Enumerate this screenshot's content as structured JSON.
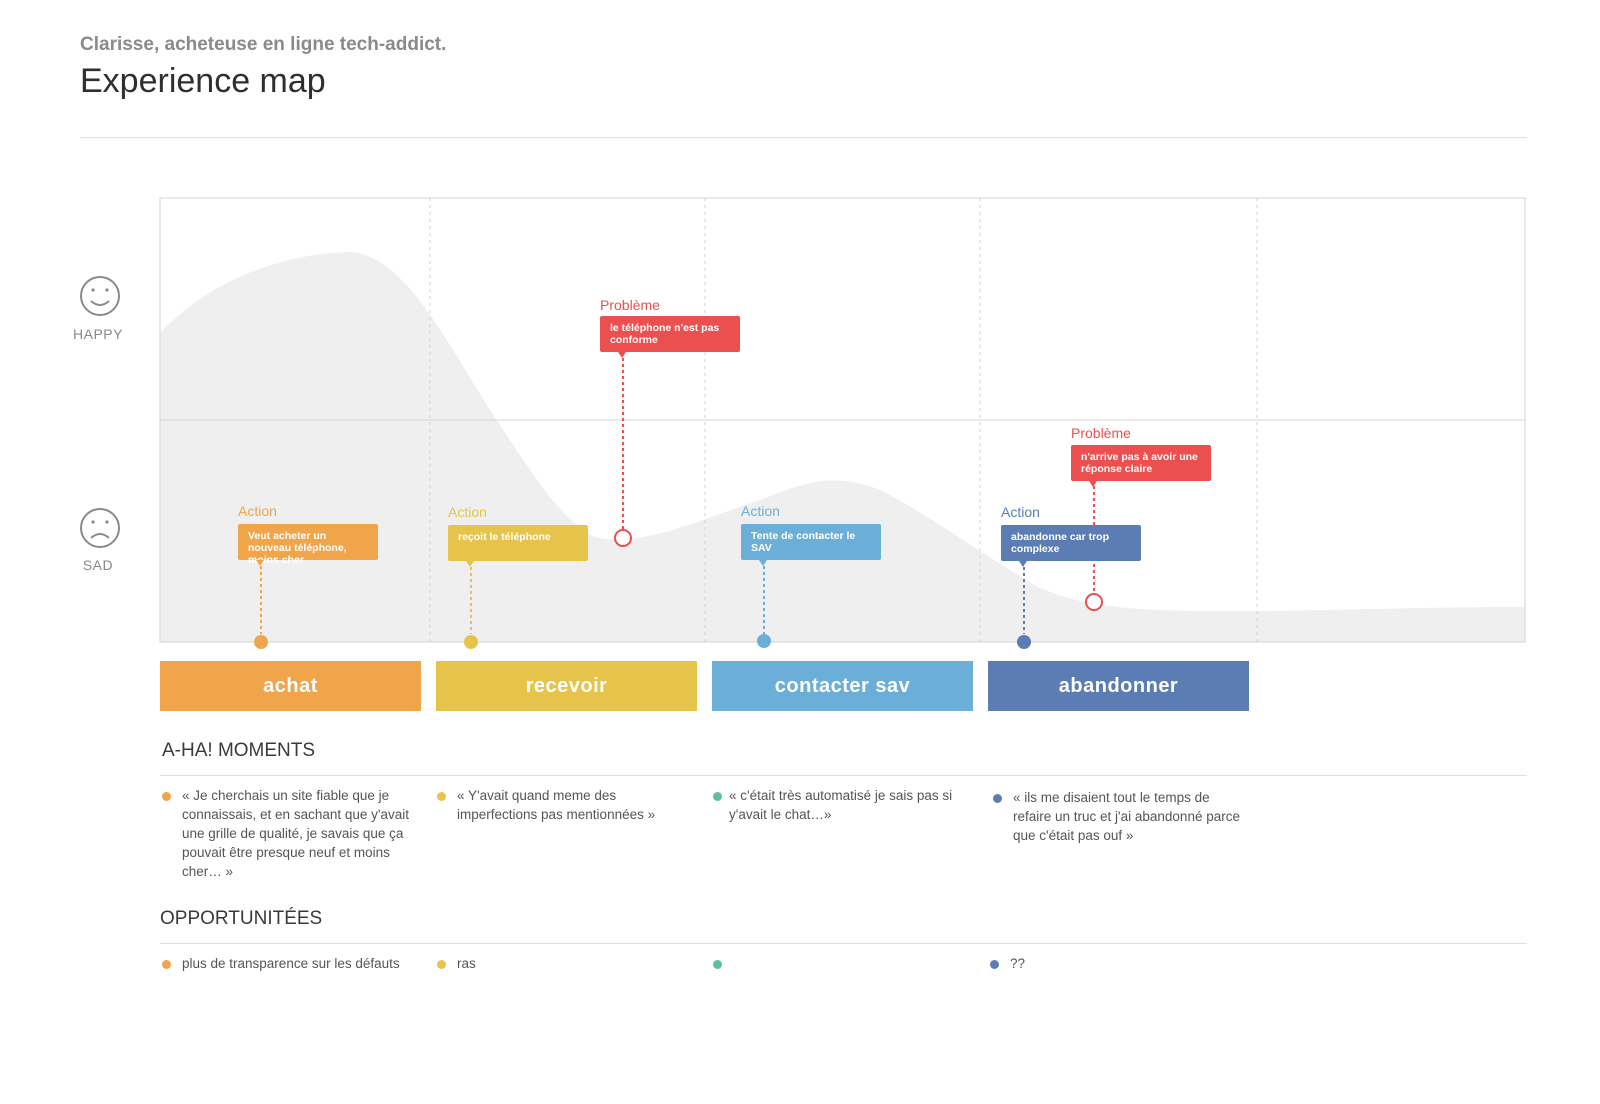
{
  "header": {
    "subtitle": "Clarisse, acheteuse en ligne tech-addict.",
    "title": "Experience map"
  },
  "mood_scale": {
    "happy_label": "HAPPY",
    "sad_label": "SAD",
    "happy_icon": "smiley-icon",
    "sad_icon": "sad-face-icon"
  },
  "colors": {
    "achat": "#F0A54A",
    "recevoir": "#E6C34A",
    "contacter": "#6BAFD8",
    "abandonner": "#5B7DB3",
    "probleme": "#EB4F4F",
    "aha_teal": "#5BBFA2"
  },
  "stages": [
    {
      "name": "achat",
      "color": "#F0A54A"
    },
    {
      "name": "recevoir",
      "color": "#E6C34A"
    },
    {
      "name": "contacter sav",
      "color": "#6BAFD8"
    },
    {
      "name": "abandonner",
      "color": "#5B7DB3"
    }
  ],
  "callouts": {
    "action_achat": {
      "title": "Action",
      "text": "Veut acheter un nouveau téléphone, moins cher"
    },
    "action_recevoir": {
      "title": "Action",
      "text": "reçoit le téléphone"
    },
    "probleme_recevoir": {
      "title": "Problème",
      "text": "le téléphone n'est pas conforme"
    },
    "action_contacter": {
      "title": "Action",
      "text": "Tente de contacter le SAV"
    },
    "action_abandonner": {
      "title": "Action",
      "text": "abandonne car trop complexe"
    },
    "probleme_abandonner": {
      "title": "Problème",
      "text": "n'arrive pas à avoir une réponse claire"
    }
  },
  "aha": {
    "title": "A-HA! MOMENTS",
    "items": [
      "« Je cherchais un site fiable que je connaissais, et en sachant que y'avait une grille de qualité, je savais que ça pouvait être presque neuf et moins cher… »",
      "« Y'avait quand meme des imperfections pas mentionnées »",
      "« c'était très automatisé je sais pas si y'avait le chat…»",
      "« ils me disaient tout le temps de refaire un truc et j'ai abandonné parce que c'était pas ouf »"
    ]
  },
  "opportunites": {
    "title": "OPPORTUNITÉES",
    "items": [
      "plus de transparence sur les défauts",
      "ras",
      "",
      "??"
    ]
  }
}
